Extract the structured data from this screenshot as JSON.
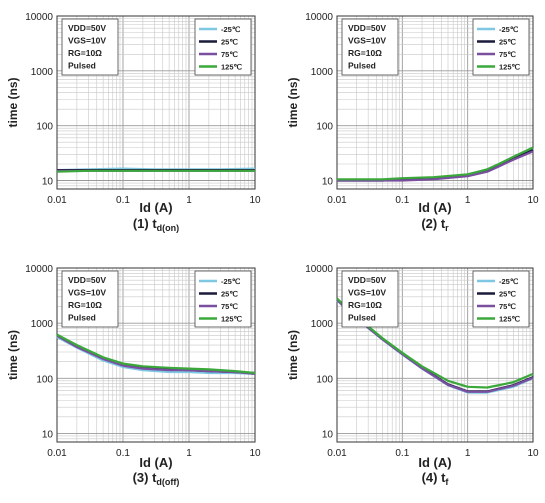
{
  "chart_data": [
    {
      "type": "line",
      "title": "(1) t",
      "title_sub": "d(on)",
      "xlabel": "Id (A)",
      "ylabel": "time (ns)",
      "xscale": "log",
      "yscale": "log",
      "xlim": [
        0.01,
        10
      ],
      "ylim": [
        7,
        10000
      ],
      "xticks": [
        "0.01",
        "0.1",
        "1",
        "10"
      ],
      "yticks": [
        "10",
        "100",
        "1000",
        "10000"
      ],
      "conditions": [
        "VDD=50V",
        "VGS=10V",
        "RG=10Ω",
        "Pulsed"
      ],
      "series": [
        {
          "name": "-25℃",
          "color": "#7ec8e3",
          "x": [
            0.01,
            0.03,
            0.1,
            0.3,
            1,
            3,
            10
          ],
          "y": [
            15.5,
            16,
            16.5,
            16,
            16,
            16,
            16.5
          ]
        },
        {
          "name": "25℃",
          "color": "#1a1a3a",
          "x": [
            0.01,
            0.03,
            0.1,
            0.3,
            1,
            3,
            10
          ],
          "y": [
            15.5,
            15.5,
            15.5,
            15.5,
            15.5,
            15.5,
            15.5
          ]
        },
        {
          "name": "75℃",
          "color": "#7b4fa0",
          "x": [
            0.01,
            0.03,
            0.1,
            0.3,
            1,
            3,
            10
          ],
          "y": [
            15,
            15,
            15,
            15,
            15,
            15,
            15
          ]
        },
        {
          "name": "125℃",
          "color": "#3aa83a",
          "x": [
            0.01,
            0.03,
            0.1,
            0.3,
            1,
            3,
            10
          ],
          "y": [
            14.5,
            15,
            15,
            15,
            15,
            15,
            15
          ]
        }
      ]
    },
    {
      "type": "line",
      "title": "(2) t",
      "title_sub": "r",
      "xlabel": "Id (A)",
      "ylabel": "time (ns)",
      "xscale": "log",
      "yscale": "log",
      "xlim": [
        0.01,
        10
      ],
      "ylim": [
        7,
        10000
      ],
      "xticks": [
        "0.01",
        "0.1",
        "1",
        "10"
      ],
      "yticks": [
        "10",
        "100",
        "1000",
        "10000"
      ],
      "conditions": [
        "VDD=50V",
        "VGS=10V",
        "RG=10Ω",
        "Pulsed"
      ],
      "series": [
        {
          "name": "-25℃",
          "color": "#7ec8e3",
          "x": [
            0.01,
            0.05,
            0.1,
            0.3,
            1,
            2,
            3,
            5,
            10
          ],
          "y": [
            10,
            10,
            10.5,
            11,
            12.5,
            15,
            19,
            26,
            38
          ]
        },
        {
          "name": "25℃",
          "color": "#1a1a3a",
          "x": [
            0.01,
            0.05,
            0.1,
            0.3,
            1,
            2,
            3,
            5,
            10
          ],
          "y": [
            10,
            10,
            10.5,
            11,
            12.5,
            15,
            19,
            25,
            36
          ]
        },
        {
          "name": "75℃",
          "color": "#7b4fa0",
          "x": [
            0.01,
            0.05,
            0.1,
            0.3,
            1,
            2,
            3,
            5,
            10
          ],
          "y": [
            10,
            10,
            10,
            10.5,
            12,
            14.5,
            18,
            24,
            34
          ]
        },
        {
          "name": "125℃",
          "color": "#3aa83a",
          "x": [
            0.01,
            0.05,
            0.1,
            0.3,
            1,
            2,
            3,
            5,
            10
          ],
          "y": [
            10.5,
            10.5,
            11,
            11.5,
            13,
            16,
            20,
            27,
            40
          ]
        }
      ]
    },
    {
      "type": "line",
      "title": "(3) t",
      "title_sub": "d(off)",
      "xlabel": "Id (A)",
      "ylabel": "time (ns)",
      "xscale": "log",
      "yscale": "log",
      "xlim": [
        0.01,
        10
      ],
      "ylim": [
        7,
        10000
      ],
      "xticks": [
        "0.01",
        "0.1",
        "1",
        "10"
      ],
      "yticks": [
        "10",
        "100",
        "1000",
        "10000"
      ],
      "conditions": [
        "VDD=50V",
        "VGS=10V",
        "RG=10Ω",
        "Pulsed"
      ],
      "series": [
        {
          "name": "-25℃",
          "color": "#7ec8e3",
          "x": [
            0.01,
            0.02,
            0.05,
            0.1,
            0.2,
            0.5,
            1,
            2,
            5,
            10
          ],
          "y": [
            560,
            360,
            210,
            160,
            140,
            130,
            130,
            125,
            125,
            120
          ]
        },
        {
          "name": "25℃",
          "color": "#1a1a3a",
          "x": [
            0.01,
            0.02,
            0.05,
            0.1,
            0.2,
            0.5,
            1,
            2,
            5,
            10
          ],
          "y": [
            600,
            380,
            230,
            175,
            155,
            145,
            140,
            135,
            130,
            125
          ]
        },
        {
          "name": "75℃",
          "color": "#7b4fa0",
          "x": [
            0.01,
            0.02,
            0.05,
            0.1,
            0.2,
            0.5,
            1,
            2,
            5,
            10
          ],
          "y": [
            590,
            370,
            225,
            170,
            150,
            140,
            140,
            135,
            130,
            120
          ]
        },
        {
          "name": "125℃",
          "color": "#3aa83a",
          "x": [
            0.01,
            0.02,
            0.05,
            0.1,
            0.2,
            0.5,
            1,
            2,
            5,
            10
          ],
          "y": [
            620,
            400,
            240,
            185,
            165,
            155,
            150,
            145,
            135,
            125
          ]
        }
      ]
    },
    {
      "type": "line",
      "title": "(4) t",
      "title_sub": "f",
      "xlabel": "Id (A)",
      "ylabel": "time (ns)",
      "xscale": "log",
      "yscale": "log",
      "xlim": [
        0.01,
        10
      ],
      "ylim": [
        7,
        10000
      ],
      "xticks": [
        "0.01",
        "0.1",
        "1",
        "10"
      ],
      "yticks": [
        "10",
        "100",
        "1000",
        "10000"
      ],
      "conditions": [
        "VDD=50V",
        "VGS=10V",
        "RG=10Ω",
        "Pulsed"
      ],
      "series": [
        {
          "name": "-25℃",
          "color": "#7ec8e3",
          "x": [
            0.01,
            0.02,
            0.05,
            0.1,
            0.2,
            0.5,
            1,
            2,
            5,
            10
          ],
          "y": [
            2600,
            1200,
            500,
            270,
            150,
            75,
            55,
            55,
            70,
            100
          ]
        },
        {
          "name": "25℃",
          "color": "#1a1a3a",
          "x": [
            0.01,
            0.02,
            0.05,
            0.1,
            0.2,
            0.5,
            1,
            2,
            5,
            10
          ],
          "y": [
            2700,
            1250,
            510,
            280,
            155,
            78,
            58,
            58,
            75,
            105
          ]
        },
        {
          "name": "75℃",
          "color": "#7b4fa0",
          "x": [
            0.01,
            0.02,
            0.05,
            0.1,
            0.2,
            0.5,
            1,
            2,
            5,
            10
          ],
          "y": [
            2650,
            1220,
            505,
            275,
            152,
            76,
            57,
            57,
            73,
            102
          ]
        },
        {
          "name": "125℃",
          "color": "#3aa83a",
          "x": [
            0.01,
            0.02,
            0.05,
            0.1,
            0.2,
            0.5,
            1,
            2,
            5,
            10
          ],
          "y": [
            2800,
            1300,
            530,
            290,
            165,
            90,
            70,
            68,
            85,
            120
          ]
        }
      ]
    }
  ]
}
